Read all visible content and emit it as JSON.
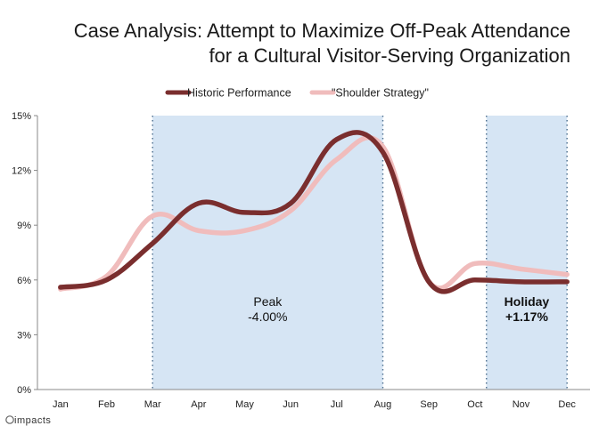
{
  "chart_data": {
    "type": "line",
    "title": [
      "Case Analysis: Attempt to Maximize Off-Peak Attendance",
      "for a Cultural Visitor-Serving Organization"
    ],
    "categories": [
      "Jan",
      "Feb",
      "Mar",
      "Apr",
      "May",
      "Jun",
      "Jul",
      "Aug",
      "Sep",
      "Oct",
      "Nov",
      "Dec"
    ],
    "series": [
      {
        "name": "Historic Performance",
        "color": "#7a2e2e",
        "values": [
          5.6,
          6.0,
          8.0,
          10.2,
          9.7,
          10.2,
          13.7,
          13.0,
          5.9,
          6.0,
          5.9,
          5.9
        ]
      },
      {
        "name": "\"Shoulder Strategy\"",
        "color": "#f0bcbc",
        "values": [
          5.5,
          6.2,
          9.5,
          8.7,
          8.7,
          9.8,
          12.6,
          13.3,
          5.9,
          6.9,
          6.6,
          6.3
        ]
      }
    ],
    "ylim": [
      0,
      15
    ],
    "yticks": [
      0,
      3,
      6,
      9,
      12,
      15
    ],
    "ytick_labels": [
      "0%",
      "3%",
      "6%",
      "9%",
      "12%",
      "15%"
    ],
    "regions": [
      {
        "name": "Peak",
        "label": "Peak",
        "value": "-4.00%",
        "start_x": 2.5,
        "end_x": 7.5,
        "color": "#d6e5f4"
      },
      {
        "name": "Holiday",
        "label": "Holiday",
        "value": "+1.17%",
        "start_x": 9.75,
        "end_x": 11.5,
        "color": "#d6e5f4"
      }
    ],
    "legend_position": "top-center"
  },
  "brand": {
    "text": "impacts"
  }
}
